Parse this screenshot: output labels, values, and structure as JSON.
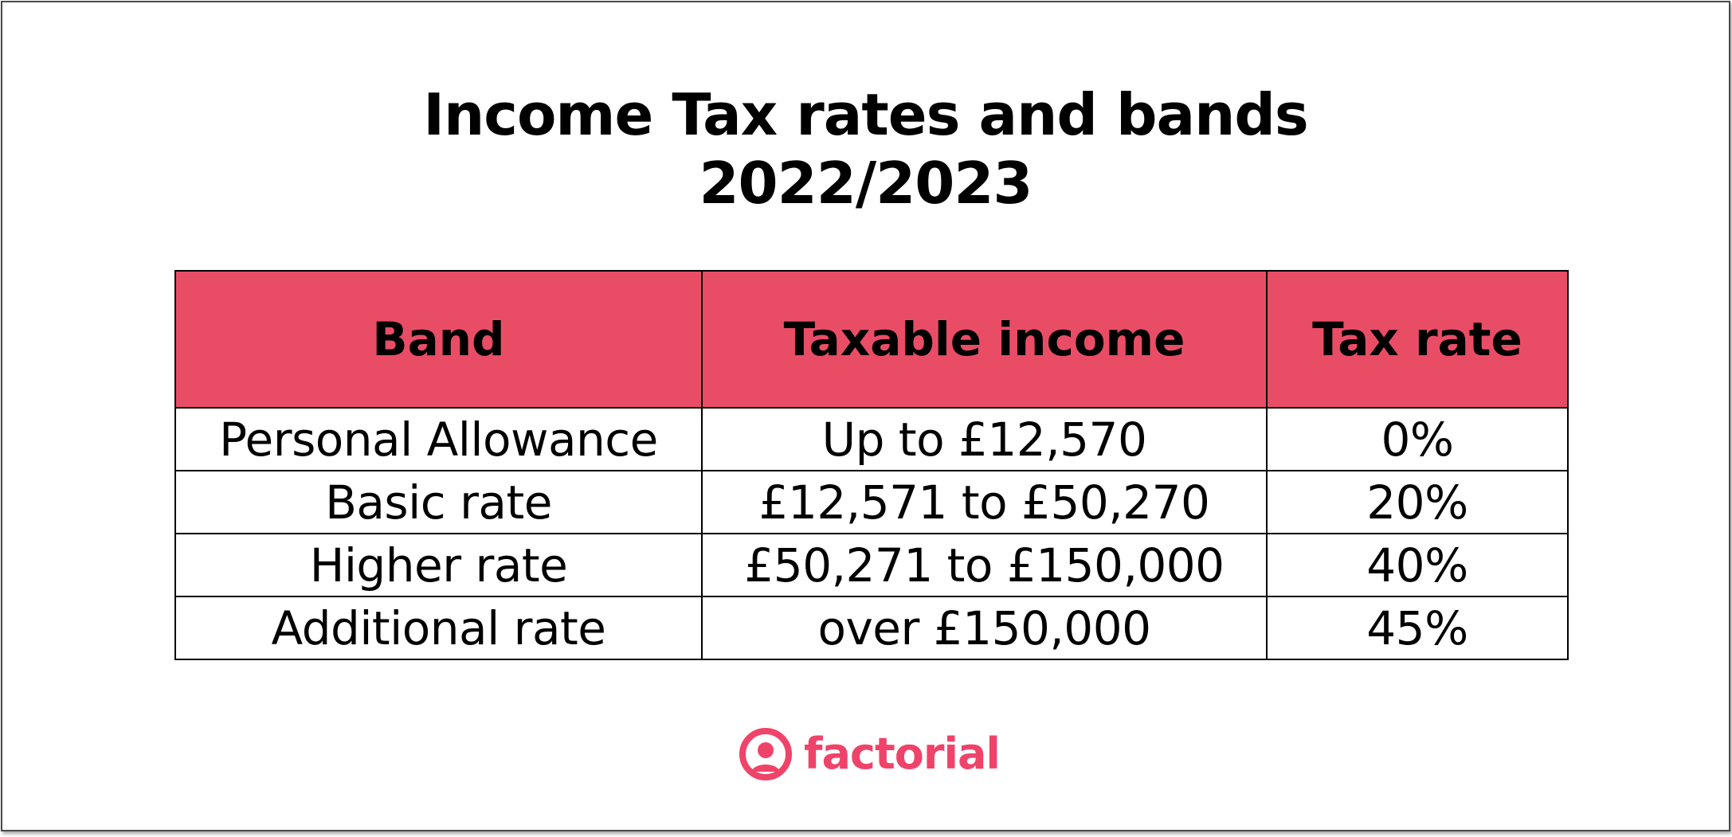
{
  "title": {
    "line1": "Income Tax rates and bands",
    "line2": "2022/2023"
  },
  "colors": {
    "header_bg": "#E94D66",
    "brand": "#F0436A"
  },
  "table": {
    "headers": [
      "Band",
      "Taxable income",
      "Tax rate"
    ],
    "rows": [
      [
        "Personal Allowance",
        "Up to £12,570",
        "0%"
      ],
      [
        "Basic rate",
        "£12,571 to £50,270",
        "20%"
      ],
      [
        "Higher rate",
        "£50,271 to £150,000",
        "40%"
      ],
      [
        "Additional rate",
        "over £150,000",
        "45%"
      ]
    ]
  },
  "logo": {
    "icon": "person-circle-icon",
    "text": "factorial"
  }
}
